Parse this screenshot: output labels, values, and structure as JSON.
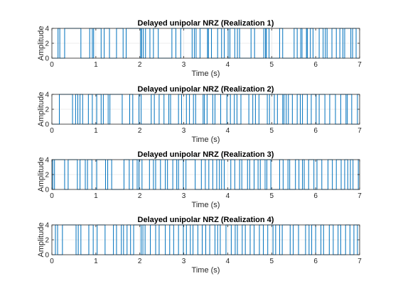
{
  "chart_data": [
    {
      "type": "line",
      "title": "Delayed unipolar NRZ (Realization 1)",
      "xlabel": "Time (s)",
      "ylabel": "Amplitude",
      "xlim": [
        0,
        7
      ],
      "ylim": [
        0,
        4
      ],
      "xticks": [
        "0",
        "1",
        "2",
        "3",
        "4",
        "5",
        "6",
        "7"
      ],
      "yticks": [
        "0",
        "2",
        "4"
      ],
      "grid": true,
      "series": [
        {
          "values": "square wave between 0 and 4",
          "transitions_x": [
            0.14,
            0.18,
            0.29,
            0.66,
            0.86,
            0.92,
            0.95,
            1.12,
            1.19,
            1.31,
            1.47,
            1.62,
            1.69,
            2.02,
            2.04,
            2.08,
            2.13,
            2.23,
            2.31,
            2.42,
            2.73,
            2.82,
            2.93,
            3.19,
            3.24,
            3.28,
            3.37,
            3.54,
            3.56,
            3.63,
            3.77,
            3.86,
            3.92,
            4.01,
            4.05,
            4.16,
            4.22,
            4.27,
            4.53,
            4.61,
            4.82,
            4.86,
            4.88,
            4.94,
            5.18,
            5.25,
            5.51,
            5.58,
            5.66,
            5.69,
            5.79,
            5.81,
            5.88,
            5.94,
            6.08,
            6.17,
            6.22,
            6.26,
            6.37,
            6.47,
            6.55,
            6.62,
            6.66,
            6.8,
            6.84,
            6.92
          ]
        }
      ],
      "start_level": 0,
      "color": "#0072bd"
    },
    {
      "type": "line",
      "title": "Delayed unipolar NRZ (Realization 2)",
      "xlabel": "Time (s)",
      "ylabel": "Amplitude",
      "xlim": [
        0,
        7
      ],
      "ylim": [
        0,
        4
      ],
      "xticks": [
        "0",
        "1",
        "2",
        "3",
        "4",
        "5",
        "6",
        "7"
      ],
      "yticks": [
        "0",
        "2",
        "4"
      ],
      "grid": true,
      "series": [
        {
          "values": "square wave between 0 and 4",
          "transitions_x": [
            0.17,
            0.47,
            0.54,
            0.59,
            0.64,
            0.7,
            0.83,
            0.92,
            1.02,
            1.12,
            1.17,
            1.28,
            1.32,
            1.6,
            1.77,
            1.84,
            1.98,
            2.03,
            2.26,
            2.33,
            2.44,
            2.55,
            2.66,
            2.7,
            2.88,
            2.95,
            3.06,
            3.13,
            3.22,
            3.27,
            3.44,
            3.47,
            3.53,
            3.66,
            3.71,
            3.84,
            3.98,
            4.06,
            4.15,
            4.21,
            4.3,
            4.48,
            4.57,
            4.63,
            4.71,
            4.9,
            4.95,
            5.06,
            5.13,
            5.25,
            5.28,
            5.33,
            5.38,
            5.47,
            5.58,
            5.65,
            5.7,
            5.81,
            5.9,
            6.01,
            6.08,
            6.21,
            6.32,
            6.45,
            6.57,
            6.69,
            6.72,
            6.82,
            6.95
          ]
        }
      ],
      "start_level": 0,
      "color": "#0072bd"
    },
    {
      "type": "line",
      "title": "Delayed unipolar NRZ (Realization 3)",
      "xlabel": "Time (s)",
      "ylabel": "Amplitude",
      "xlim": [
        0,
        7
      ],
      "ylim": [
        0,
        4
      ],
      "xticks": [
        "0",
        "1",
        "2",
        "3",
        "4",
        "5",
        "6",
        "7"
      ],
      "yticks": [
        "0",
        "2",
        "4"
      ],
      "grid": true,
      "series": [
        {
          "values": "square wave between 0 and 4",
          "transitions_x": [
            0.02,
            0.06,
            0.29,
            0.37,
            0.58,
            0.64,
            0.76,
            0.81,
            0.91,
            1.02,
            1.22,
            1.27,
            1.36,
            1.64,
            1.76,
            1.84,
            1.94,
            1.98,
            2.05,
            2.22,
            2.31,
            2.36,
            2.47,
            2.58,
            2.63,
            2.75,
            2.84,
            2.88,
            2.99,
            3.05,
            3.26,
            3.4,
            3.49,
            3.57,
            3.66,
            3.75,
            3.81,
            3.86,
            3.92,
            4.07,
            4.16,
            4.27,
            4.32,
            4.45,
            4.5,
            4.6,
            4.69,
            4.74,
            4.85,
            4.89,
            4.98,
            5.18,
            5.26,
            5.37,
            5.41,
            5.54,
            5.62,
            5.7,
            5.74,
            5.84,
            5.96,
            6.03,
            6.14,
            6.28,
            6.38,
            6.47,
            6.58,
            6.66,
            6.73,
            6.79,
            6.85,
            6.97
          ]
        }
      ],
      "start_level": 4,
      "color": "#0072bd"
    },
    {
      "type": "line",
      "title": "Delayed unipolar NRZ (Realization 4)",
      "xlabel": "Time (s)",
      "ylabel": "Amplitude",
      "xlim": [
        0,
        7
      ],
      "ylim": [
        0,
        4
      ],
      "xticks": [
        "0",
        "1",
        "2",
        "3",
        "4",
        "5",
        "6",
        "7"
      ],
      "yticks": [
        "0",
        "2",
        "4"
      ],
      "grid": true,
      "series": [
        {
          "values": "square wave between 0 and 4",
          "transitions_x": [
            0.08,
            0.13,
            0.24,
            0.55,
            0.6,
            0.66,
            0.84,
            0.94,
            1.03,
            1.21,
            1.4,
            1.47,
            1.58,
            1.63,
            1.71,
            1.79,
            1.86,
            2.03,
            2.07,
            2.12,
            2.24,
            2.36,
            2.44,
            2.58,
            2.68,
            2.77,
            2.88,
            2.99,
            3.06,
            3.15,
            3.21,
            3.32,
            3.42,
            3.5,
            3.59,
            3.71,
            3.77,
            3.83,
            3.96,
            4.08,
            4.17,
            4.22,
            4.33,
            4.4,
            4.51,
            4.6,
            4.72,
            4.81,
            4.91,
            5.03,
            5.09,
            5.18,
            5.24,
            5.42,
            5.49,
            5.61,
            5.77,
            5.85,
            5.91,
            6.0,
            6.12,
            6.18,
            6.31,
            6.4,
            6.51,
            6.57,
            6.68,
            6.78,
            6.87,
            6.95
          ]
        }
      ],
      "start_level": 0,
      "color": "#0072bd"
    }
  ]
}
